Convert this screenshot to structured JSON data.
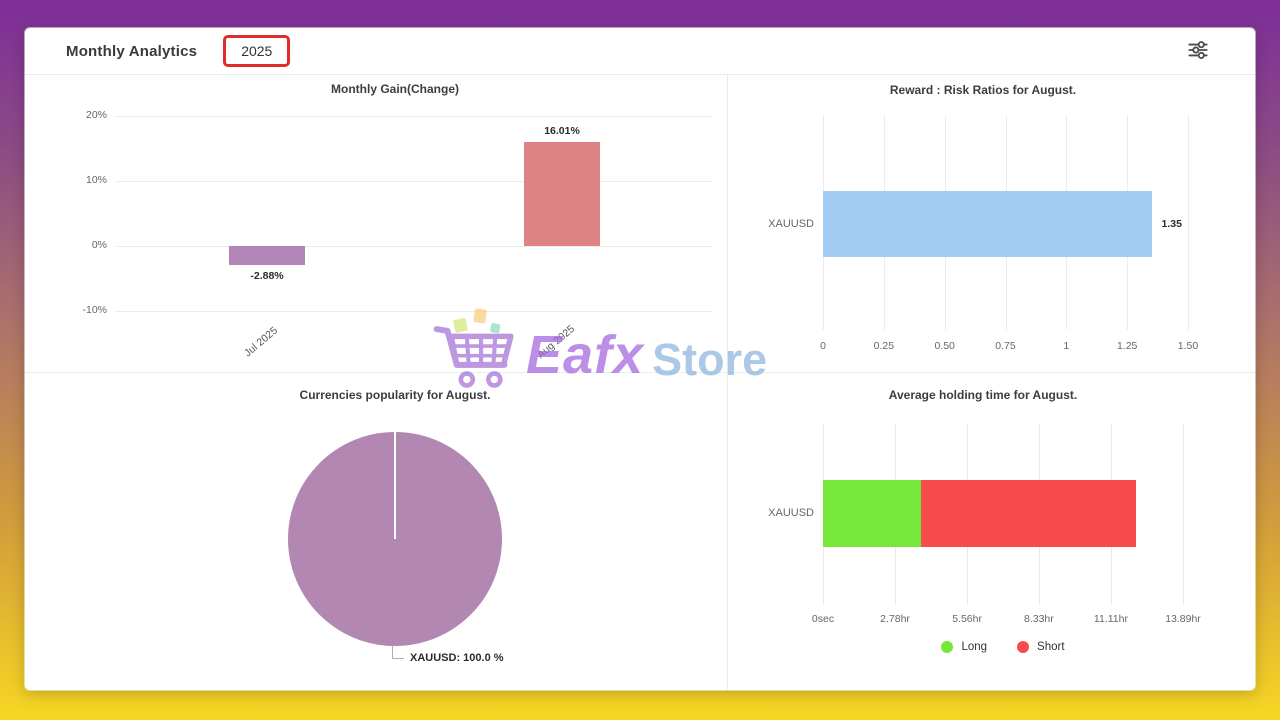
{
  "header": {
    "title": "Monthly Analytics",
    "year": "2025"
  },
  "watermark": {
    "text_primary": "Eafx",
    "text_secondary": "Store",
    "cart_icon": "shopping-cart-icon",
    "color_primary": "#a163de",
    "color_secondary": "#8cb4dd"
  },
  "theme": {
    "background_gradient": [
      "#7d2d99",
      "#ad726b",
      "#f6d623"
    ],
    "card_background": "#ffffff",
    "year_box_border": "#e02b2b",
    "gridline_color": "#ececec",
    "axis_text_color": "#666666"
  },
  "chart_data": [
    {
      "id": "monthly_gain",
      "type": "bar",
      "title": "Monthly Gain(Change)",
      "categories": [
        "Jul 2025",
        "Aug 2025"
      ],
      "values": [
        -2.88,
        16.01
      ],
      "value_labels": [
        "-2.88%",
        "16.01%"
      ],
      "bar_colors": [
        "#b185b5",
        "#de8383"
      ],
      "ylim": [
        -10,
        20
      ],
      "yticks": [
        "20%",
        "10%",
        "0%",
        "-10%"
      ],
      "ytick_values": [
        20,
        10,
        0,
        -10
      ],
      "grid": true,
      "legend_position": "none"
    },
    {
      "id": "reward_risk",
      "type": "horizontal-bar",
      "title": "Reward : Risk Ratios for August.",
      "categories": [
        "XAUUSD"
      ],
      "values": [
        1.35
      ],
      "value_labels": [
        "1.35"
      ],
      "bar_color": "#a2cef5",
      "xlim": [
        0,
        1.5
      ],
      "xticks": [
        "0",
        "0.25",
        "0.50",
        "0.75",
        "1",
        "1.25",
        "1.50"
      ],
      "xtick_values": [
        0,
        0.25,
        0.5,
        0.75,
        1,
        1.25,
        1.5
      ],
      "grid": true,
      "legend_position": "none"
    },
    {
      "id": "currency_popularity",
      "type": "pie",
      "title": "Currencies popularity for August.",
      "slices": [
        {
          "label": "XAUUSD",
          "value": 100.0,
          "display": "XAUUSD: 100.0 %",
          "color": "#b287b2"
        }
      ],
      "legend_position": "none"
    },
    {
      "id": "avg_holding_time",
      "type": "stacked-horizontal-bar",
      "title": "Average holding time for August.",
      "categories": [
        "XAUUSD"
      ],
      "series": [
        {
          "name": "Long",
          "values_hours": [
            3.78
          ],
          "color": "#76e73b"
        },
        {
          "name": "Short",
          "values_hours": [
            8.3
          ],
          "color": "#f84c4c"
        }
      ],
      "xlim_hours": [
        0,
        13.89
      ],
      "xticks": [
        "0sec",
        "2.78hr",
        "5.56hr",
        "8.33hr",
        "11.11hr",
        "13.89hr"
      ],
      "xtick_values_hours": [
        0,
        2.78,
        5.56,
        8.33,
        11.11,
        13.89
      ],
      "grid": true,
      "legend": [
        "Long",
        "Short"
      ],
      "legend_position": "bottom"
    }
  ]
}
